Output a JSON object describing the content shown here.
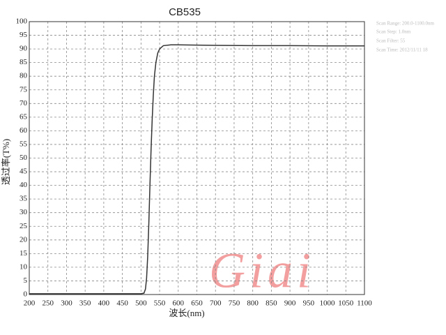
{
  "chart_data": {
    "type": "line",
    "title": "CB535",
    "x_label": "波长(nm)",
    "y_label": "透过率(T%)",
    "annotations": [
      "Scan Range: 200.0-1100.0nm",
      "Scan Step: 1.0nm",
      "Scan Filter: 55",
      "Scan Time: 2012/11/11 18",
      "Giai"
    ],
    "x": [
      200,
      300,
      400,
      500,
      508,
      512,
      515,
      518,
      521,
      524,
      527,
      530,
      533,
      536,
      540,
      545,
      550,
      560,
      580,
      600,
      700,
      800,
      900,
      1000,
      1100
    ],
    "series": [
      {
        "name": "CB535",
        "color": "#333333",
        "values": [
          0.3,
          0.3,
          0.3,
          0.3,
          0.5,
          2,
          6,
          14,
          26,
          40,
          53,
          64,
          73,
          80,
          85,
          88.5,
          90,
          91.2,
          91.5,
          91.5,
          91.3,
          91.2,
          91.2,
          91.1,
          91.1
        ]
      }
    ],
    "xlim": [
      200,
      1100
    ],
    "xticks": [
      200,
      250,
      300,
      350,
      400,
      450,
      500,
      550,
      600,
      650,
      700,
      750,
      800,
      850,
      900,
      950,
      1000,
      1050,
      1100
    ],
    "ylim": [
      0,
      100
    ],
    "yticks": [
      0,
      5,
      10,
      15,
      20,
      25,
      30,
      35,
      40,
      45,
      50,
      55,
      60,
      65,
      70,
      75,
      80,
      85,
      90,
      95,
      100
    ],
    "grid": true
  }
}
